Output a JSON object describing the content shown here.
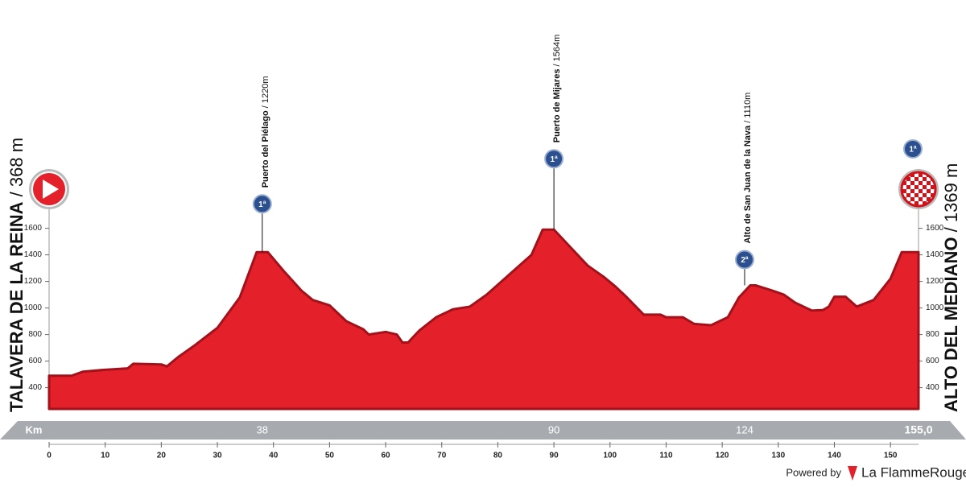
{
  "chart_data": {
    "type": "area",
    "color": "#e4202b",
    "edge_color": "#a3121a",
    "x": [
      0,
      4,
      6,
      10,
      14,
      15,
      20,
      21,
      23,
      26,
      30,
      34,
      37,
      39,
      42,
      45,
      47,
      50,
      53,
      56,
      57,
      60,
      62,
      63,
      64,
      66,
      69,
      72,
      75,
      78,
      82,
      86,
      88,
      90,
      92,
      96,
      99,
      101,
      103,
      106,
      109,
      110,
      113,
      115,
      118,
      121,
      123,
      125,
      126,
      129,
      131,
      133,
      136,
      138,
      139,
      140,
      142,
      144,
      147,
      150,
      152,
      155
    ],
    "values": [
      490,
      490,
      520,
      535,
      545,
      580,
      575,
      560,
      630,
      720,
      850,
      1080,
      1420,
      1420,
      1270,
      1130,
      1060,
      1020,
      900,
      840,
      800,
      820,
      800,
      740,
      740,
      830,
      930,
      990,
      1010,
      1100,
      1250,
      1400,
      1590,
      1590,
      1500,
      1320,
      1230,
      1160,
      1080,
      950,
      950,
      930,
      930,
      880,
      870,
      930,
      1080,
      1170,
      1170,
      1130,
      1100,
      1040,
      980,
      985,
      1010,
      1085,
      1085,
      1010,
      1060,
      1220,
      1420,
      1420
    ],
    "xlim": [
      0,
      155
    ],
    "ylim": [
      240,
      1640
    ],
    "xticks": [
      0,
      10,
      20,
      30,
      40,
      50,
      60,
      70,
      80,
      90,
      100,
      110,
      120,
      130,
      140,
      150
    ],
    "yticks": [
      400,
      600,
      800,
      1000,
      1200,
      1400,
      1600
    ],
    "x_axis_label": "Km",
    "distance": {
      "value": 155,
      "label": "155,0"
    },
    "start": {
      "name": "TALAVERA DE LA REINA",
      "altitude": "/ 368 m"
    },
    "finish": {
      "name": "ALTO DEL MEDIANO",
      "altitude": "/ 1369 m",
      "category": "1ª"
    },
    "climbs": [
      {
        "name": "Puerto del Piélago",
        "altitude": "/ 1220m",
        "km": 38,
        "category": "1ª"
      },
      {
        "name": "Puerto de Mijares",
        "altitude": "/ 1564m",
        "km": 90,
        "category": "1ª"
      },
      {
        "name": "Alto de San Juan de la Nava",
        "altitude": "/ 1110m",
        "km": 124,
        "category": "2ª"
      }
    ],
    "footer": {
      "powered_by": "Powered by",
      "brand": "La FlammeRouge"
    }
  }
}
